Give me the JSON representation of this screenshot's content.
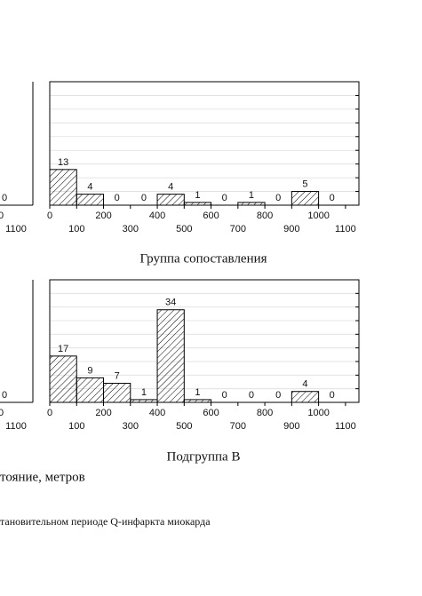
{
  "chart_data": [
    {
      "type": "histogram",
      "bins": [
        0,
        100,
        200,
        300,
        400,
        500,
        600,
        700,
        800,
        900,
        1000,
        1100
      ],
      "values": [
        13,
        4,
        0,
        0,
        4,
        1,
        0,
        1,
        0,
        5,
        0
      ],
      "xlim": [
        0,
        1150
      ],
      "xticks": [
        0,
        100,
        200,
        300,
        400,
        500,
        600,
        700,
        800,
        900,
        1000,
        1100
      ],
      "ylim": [
        0,
        45
      ],
      "yticks": [
        0,
        5,
        10,
        15,
        20,
        25,
        30,
        35,
        40
      ],
      "grid": true,
      "xlabel": "Группа сопоставления",
      "color": "#000000"
    },
    {
      "type": "histogram",
      "bins": [
        0,
        100,
        200,
        300,
        400,
        500,
        600,
        700,
        800,
        900,
        1000,
        1100
      ],
      "values": [
        17,
        9,
        7,
        1,
        34,
        1,
        0,
        0,
        0,
        4,
        0
      ],
      "xlim": [
        0,
        1150
      ],
      "xticks": [
        0,
        100,
        200,
        300,
        400,
        500,
        600,
        700,
        800,
        900,
        1000,
        1100
      ],
      "ylim": [
        0,
        45
      ],
      "yticks": [
        0,
        5,
        10,
        15,
        20,
        25,
        30,
        35,
        40
      ],
      "grid": true,
      "xlabel": "Подгруппа В",
      "color": "#000000"
    }
  ],
  "fragments": {
    "top_value": "0",
    "top_tick_a": "0",
    "top_tick_b": "1100",
    "bottom_value": "0",
    "bottom_tick_a": "0",
    "bottom_tick_b": "1100",
    "axis_caption": "тояние, метров",
    "figure_caption": "тановительном периоде Q-инфаркта миокарда"
  }
}
